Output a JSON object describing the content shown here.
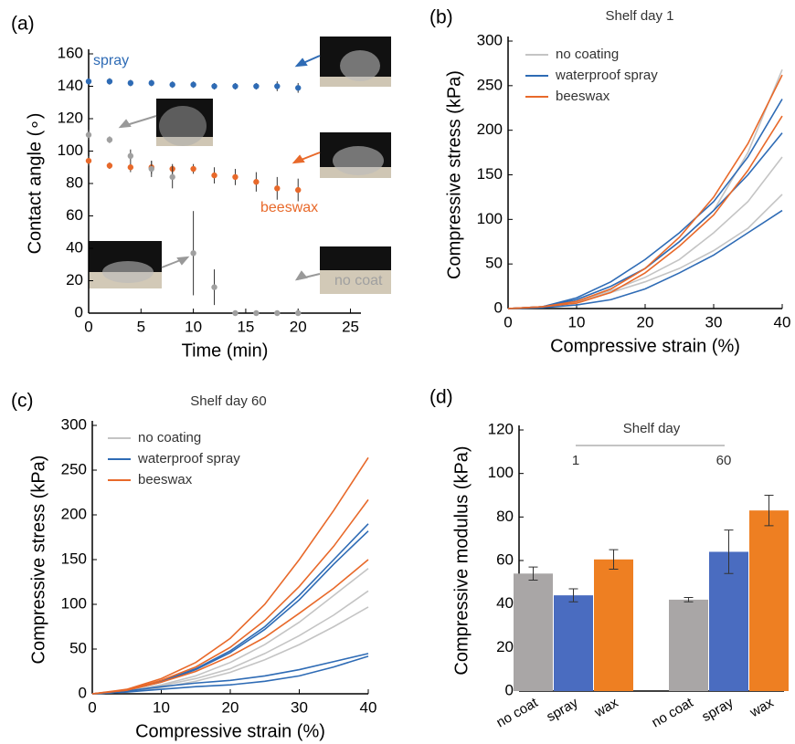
{
  "chart_data": [
    {
      "type": "scatter",
      "panel_label": "(a)",
      "x_label": "Time (min)",
      "y_label": "Contact angle (∘)",
      "xlim": [
        0,
        26
      ],
      "xticks": [
        0,
        5,
        10,
        15,
        20,
        25
      ],
      "ylim": [
        0,
        160
      ],
      "yticks": [
        0,
        20,
        40,
        60,
        80,
        100,
        120,
        140,
        160
      ],
      "x": [
        0,
        2,
        4,
        6,
        8,
        10,
        12,
        14,
        16,
        18,
        20
      ],
      "series": [
        {
          "name": "spray",
          "color": "#2e6bb5",
          "values": [
            143,
            143,
            142,
            142,
            141,
            141,
            140,
            140,
            140,
            140,
            139
          ],
          "errors": [
            2,
            2,
            2,
            2,
            2,
            2,
            2,
            2,
            2,
            3,
            3
          ]
        },
        {
          "name": "beeswax",
          "color": "#e8692a",
          "values": [
            94,
            91,
            90,
            90,
            89,
            89,
            85,
            84,
            81,
            77,
            76
          ],
          "errors": [
            3,
            2,
            3,
            4,
            3,
            3,
            5,
            5,
            6,
            7,
            7
          ]
        },
        {
          "name": "no coat",
          "color": "#a0a0a0",
          "values": [
            110,
            107,
            97,
            89,
            84,
            37,
            16,
            0,
            0,
            0,
            0
          ],
          "errors": [
            3,
            2,
            4,
            5,
            7,
            26,
            11,
            0,
            0,
            0,
            0
          ]
        }
      ]
    },
    {
      "type": "line",
      "panel_label": "(b)",
      "title": "Shelf day 1",
      "x_label": "Compressive strain (%)",
      "y_label": "Compressive stress (kPa)",
      "xlim": [
        0,
        40
      ],
      "xticks": [
        0,
        10,
        20,
        30,
        40
      ],
      "ylim": [
        0,
        300
      ],
      "yticks": [
        0,
        50,
        100,
        150,
        200,
        250,
        300
      ],
      "legend": "upper left",
      "x": [
        0,
        5,
        10,
        15,
        20,
        25,
        30,
        35,
        40
      ],
      "series": [
        {
          "name": "no coating",
          "color": "#c4c4c4",
          "curves": [
            [
              0,
              2,
              8,
              22,
              45,
              75,
              110,
              175,
              268
            ],
            [
              0,
              2,
              8,
              20,
              35,
              55,
              85,
              120,
              170
            ],
            [
              0,
              2,
              7,
              18,
              30,
              45,
              65,
              90,
              128
            ]
          ]
        },
        {
          "name": "waterproof spray",
          "color": "#2e6bb5",
          "curves": [
            [
              0,
              2,
              12,
              30,
              55,
              85,
              120,
              170,
              235
            ],
            [
              0,
              2,
              10,
              25,
              45,
              75,
              110,
              150,
              197
            ],
            [
              0,
              1,
              4,
              10,
              22,
              40,
              60,
              85,
              110
            ]
          ]
        },
        {
          "name": "beeswax",
          "color": "#e8692a",
          "curves": [
            [
              0,
              2,
              8,
              22,
              45,
              80,
              125,
              185,
              262
            ],
            [
              0,
              2,
              6,
              18,
              40,
              70,
              105,
              155,
              216
            ]
          ]
        }
      ]
    },
    {
      "type": "line",
      "panel_label": "(c)",
      "title": "Shelf day 60",
      "x_label": "Compressive strain (%)",
      "y_label": "Compressive stress (kPa)",
      "xlim": [
        0,
        40
      ],
      "xticks": [
        0,
        10,
        20,
        30,
        40
      ],
      "ylim": [
        0,
        300
      ],
      "yticks": [
        0,
        50,
        100,
        150,
        200,
        250,
        300
      ],
      "legend": "upper left",
      "x": [
        0,
        5,
        10,
        15,
        20,
        25,
        30,
        35,
        40
      ],
      "series": [
        {
          "name": "no coating",
          "color": "#c4c4c4",
          "curves": [
            [
              0,
              3,
              10,
              20,
              35,
              55,
              80,
              110,
              140
            ],
            [
              0,
              3,
              9,
              17,
              28,
              45,
              65,
              88,
              115
            ],
            [
              0,
              2,
              7,
              14,
              24,
              38,
              55,
              75,
              97
            ]
          ]
        },
        {
          "name": "waterproof spray",
          "color": "#2e6bb5",
          "curves": [
            [
              0,
              4,
              14,
              28,
              48,
              75,
              110,
              150,
              190
            ],
            [
              0,
              4,
              13,
              27,
              46,
              72,
              105,
              145,
              182
            ],
            [
              0,
              3,
              8,
              12,
              15,
              20,
              27,
              36,
              45
            ],
            [
              0,
              2,
              5,
              8,
              10,
              14,
              20,
              30,
              42
            ]
          ]
        },
        {
          "name": "beeswax",
          "color": "#e8692a",
          "curves": [
            [
              0,
              5,
              17,
              35,
              62,
              100,
              150,
              205,
              264
            ],
            [
              0,
              4,
              15,
              30,
              52,
              82,
              120,
              165,
              217
            ],
            [
              0,
              4,
              13,
              25,
              42,
              63,
              90,
              118,
              150
            ]
          ]
        }
      ]
    },
    {
      "type": "bar",
      "panel_label": "(d)",
      "group_title": "Shelf day",
      "y_label": "Compressive modulus (kPa)",
      "ylim": [
        0,
        120
      ],
      "yticks": [
        0,
        20,
        40,
        60,
        80,
        100,
        120
      ],
      "categories": [
        "1",
        "60"
      ],
      "series": [
        {
          "name": "no coat",
          "color": "#a9a6a6",
          "values": [
            54,
            42
          ],
          "errors": [
            3,
            1
          ]
        },
        {
          "name": "spray",
          "color": "#4a6cc0",
          "values": [
            44,
            64
          ],
          "errors": [
            3,
            10
          ]
        },
        {
          "name": "wax",
          "color": "#ee7f22",
          "values": [
            60.5,
            83
          ],
          "errors": [
            4.5,
            7
          ]
        }
      ]
    }
  ]
}
